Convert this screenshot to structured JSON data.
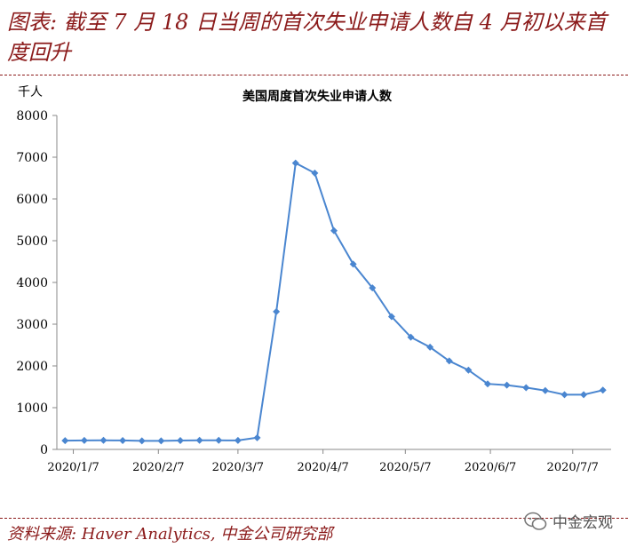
{
  "headline": "图表: 截至 7 月 18 日当周的首次失业申请人数自 4 月初以来首度回升",
  "source": "资料来源: Haver Analytics, 中金公司研究部",
  "brand": {
    "name": "中金宏观",
    "icon": "wechat-icon"
  },
  "colors": {
    "accent": "#8B1A1A",
    "series": "#4A86D0"
  },
  "chart_data": {
    "type": "line",
    "title": "美国周度首次失业申请人数",
    "y_unit": "千人",
    "ylim": [
      0,
      8000
    ],
    "yticks": [
      0,
      1000,
      2000,
      3000,
      4000,
      5000,
      6000,
      7000,
      8000
    ],
    "xticks": [
      "2020/1/7",
      "2020/2/7",
      "2020/3/7",
      "2020/4/7",
      "2020/5/7",
      "2020/6/7",
      "2020/7/7"
    ],
    "legend": "none",
    "grid": false,
    "x": [
      "2020/1/4",
      "2020/1/11",
      "2020/1/18",
      "2020/1/25",
      "2020/2/1",
      "2020/2/8",
      "2020/2/15",
      "2020/2/22",
      "2020/2/29",
      "2020/3/7",
      "2020/3/14",
      "2020/3/21",
      "2020/3/28",
      "2020/4/4",
      "2020/4/11",
      "2020/4/18",
      "2020/4/25",
      "2020/5/2",
      "2020/5/9",
      "2020/5/16",
      "2020/5/23",
      "2020/5/30",
      "2020/6/6",
      "2020/6/13",
      "2020/6/20",
      "2020/6/27",
      "2020/7/4",
      "2020/7/11",
      "2020/7/18"
    ],
    "series": [
      {
        "values": [
          210,
          215,
          218,
          214,
          205,
          205,
          212,
          218,
          218,
          215,
          280,
          3300,
          6860,
          6620,
          5240,
          4440,
          3870,
          3180,
          2690,
          2450,
          2120,
          1900,
          1570,
          1540,
          1480,
          1410,
          1310,
          1310,
          1420
        ]
      }
    ]
  }
}
